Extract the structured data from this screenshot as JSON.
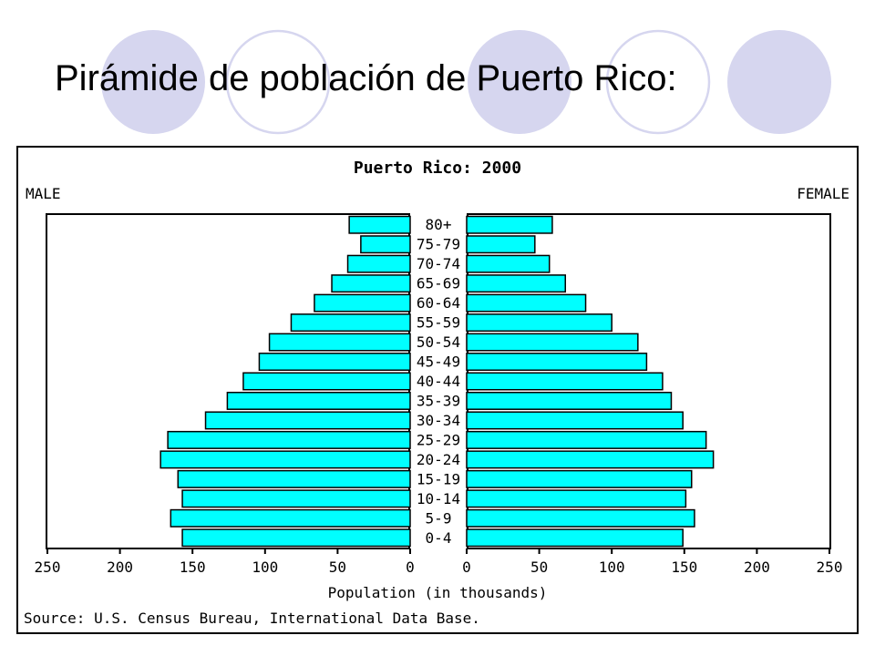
{
  "slide": {
    "title": "Pirámide de población de Puerto Rico:",
    "circle_fill": "#d6d6ef",
    "circle_ring": "#d6d6ef"
  },
  "chart_data": {
    "type": "bar",
    "title": "Puerto Rico: 2000",
    "left_label": "MALE",
    "right_label": "FEMALE",
    "xlabel": "Population (in thousands)",
    "source": "Source: U.S. Census Bureau, International Data Base.",
    "categories": [
      "0-4",
      "5-9",
      "10-14",
      "15-19",
      "20-24",
      "25-29",
      "30-34",
      "35-39",
      "40-44",
      "45-49",
      "50-54",
      "55-59",
      "60-64",
      "65-69",
      "70-74",
      "75-79",
      "80+"
    ],
    "series": [
      {
        "name": "MALE",
        "values": [
          157,
          165,
          157,
          160,
          172,
          167,
          141,
          126,
          115,
          104,
          97,
          82,
          66,
          54,
          43,
          34,
          42
        ]
      },
      {
        "name": "FEMALE",
        "values": [
          149,
          157,
          151,
          155,
          170,
          165,
          149,
          141,
          135,
          124,
          118,
          100,
          82,
          68,
          57,
          47,
          59
        ]
      }
    ],
    "xlim": [
      0,
      250
    ],
    "ticks": [
      0,
      50,
      100,
      150,
      200,
      250
    ],
    "tick_labels": [
      "0",
      "50",
      "100",
      "150",
      "200",
      "250"
    ],
    "bar_color": "#00ffff",
    "grid": false
  }
}
